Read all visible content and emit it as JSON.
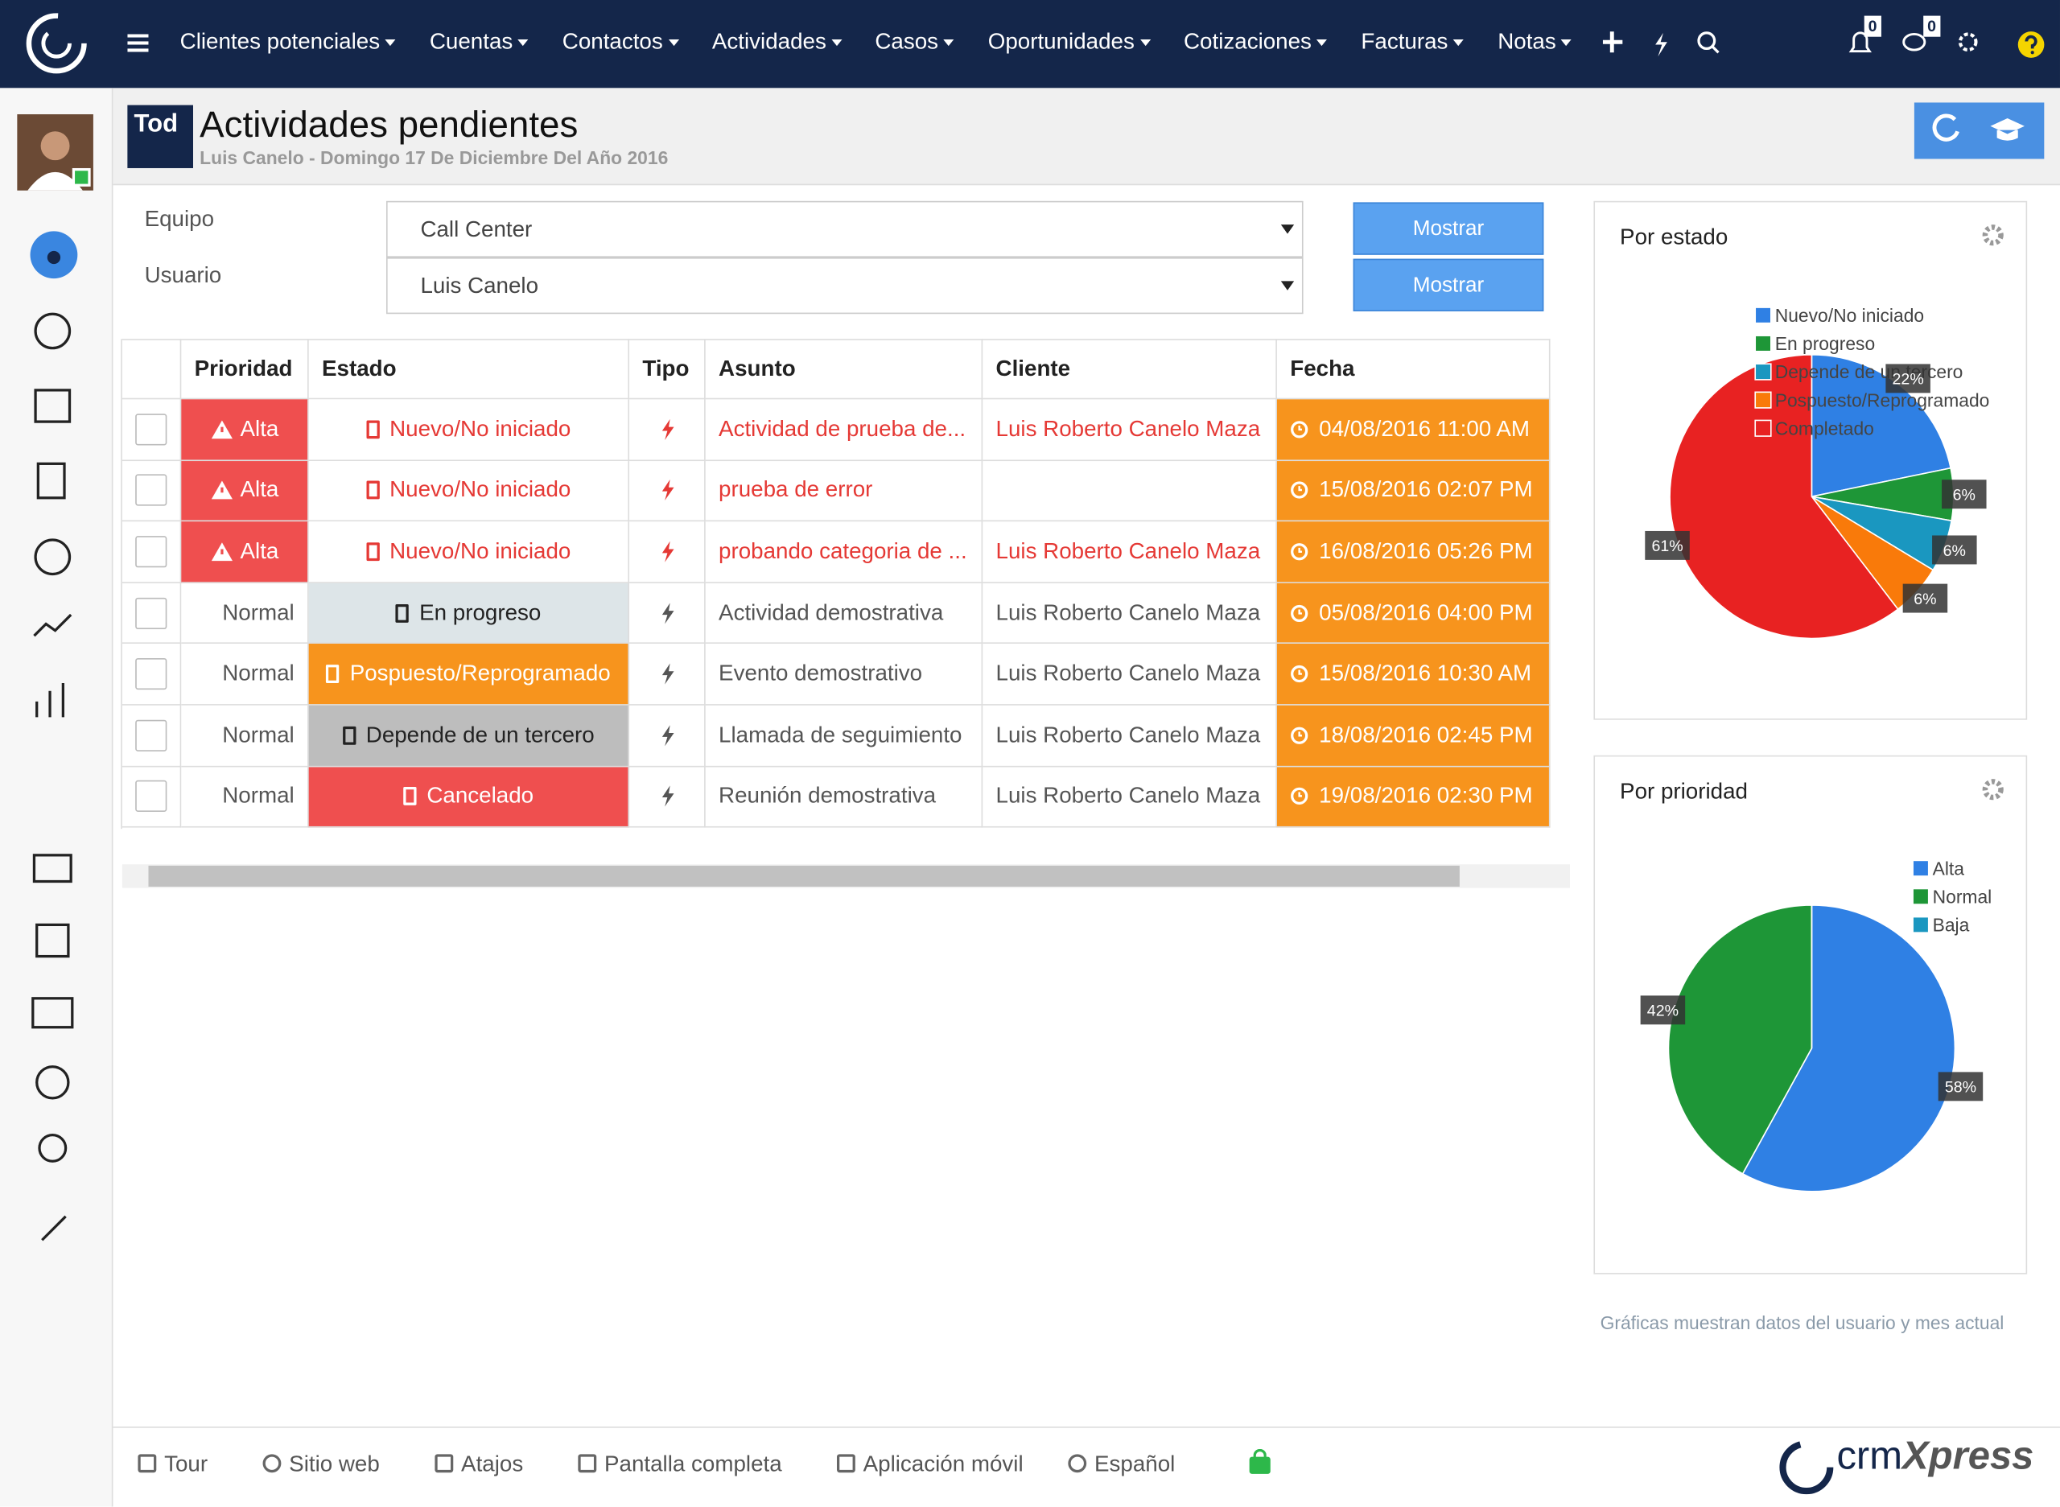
{
  "nav": {
    "items": [
      "Clientes potenciales",
      "Cuentas",
      "Contactos",
      "Actividades",
      "Casos",
      "Oportunidades",
      "Cotizaciones",
      "Facturas",
      "Notas"
    ],
    "notifications": 0,
    "messages": 0
  },
  "header": {
    "badge": "Tod",
    "title": "Actividades pendientes",
    "subtitle": "Luis Canelo - Domingo 17 De Diciembre Del Año 2016"
  },
  "filters": [
    {
      "label": "Equipo",
      "value": "Call Center",
      "button": "Mostrar"
    },
    {
      "label": "Usuario",
      "value": "Luis Canelo",
      "button": "Mostrar"
    }
  ],
  "table": {
    "headers": [
      "Prioridad",
      "Estado",
      "Tipo",
      "Asunto",
      "Cliente",
      "Fecha"
    ],
    "rows": [
      {
        "priority": "Alta",
        "status": "Nuevo/No iniciado",
        "subject": "Actividad de prueba de...",
        "client": "Luis Roberto Canelo Maza",
        "date": "04/08/2016 11:00 AM",
        "priority_bg": "#ef4f4f",
        "status_bg": null,
        "text_color": "#e53935"
      },
      {
        "priority": "Alta",
        "status": "Nuevo/No iniciado",
        "subject": "prueba de error",
        "client": null,
        "date": "15/08/2016 02:07 PM",
        "priority_bg": "#ef4f4f",
        "status_bg": null,
        "text_color": "#e53935"
      },
      {
        "priority": "Alta",
        "status": "Nuevo/No iniciado",
        "subject": "probando categoria de ...",
        "client": "Luis Roberto Canelo Maza",
        "date": "16/08/2016 05:26 PM",
        "priority_bg": "#ef4f4f",
        "status_bg": null,
        "text_color": "#e53935"
      },
      {
        "priority": "Normal",
        "status": "En progreso",
        "subject": "Actividad demostrativa",
        "client": "Luis Roberto Canelo Maza",
        "date": "05/08/2016 04:00 PM",
        "priority_bg": null,
        "status_bg": "#dde5e8",
        "text_color": "#555555"
      },
      {
        "priority": "Normal",
        "status": "Pospuesto/Reprogramado",
        "subject": "Evento demostrativo",
        "client": "Luis Roberto Canelo Maza",
        "date": "15/08/2016 10:30 AM",
        "priority_bg": null,
        "status_bg": "#f7941d",
        "text_color": "#555555"
      },
      {
        "priority": "Normal",
        "status": "Depende de un tercero",
        "subject": "Llamada de seguimiento",
        "client": "Luis Roberto Canelo Maza",
        "date": "18/08/2016 02:45 PM",
        "priority_bg": null,
        "status_bg": "#bdbdbd",
        "text_color": "#555555"
      },
      {
        "priority": "Normal",
        "status": "Cancelado",
        "subject": "Reunión demostrativa",
        "client": "Luis Roberto Canelo Maza",
        "date": "19/08/2016 02:30 PM",
        "priority_bg": null,
        "status_bg": "#ef4f4f",
        "text_color": "#555555"
      }
    ],
    "date_bg": "#f7941d"
  },
  "chart_data": [
    {
      "type": "pie",
      "title": "Por estado",
      "categories": [
        "Nuevo/No iniciado",
        "En progreso",
        "Depende de un tercero",
        "Pospuesto/Reprogramado",
        "Completado"
      ],
      "values": [
        22,
        6,
        6,
        6,
        61
      ],
      "value_labels": [
        "22%",
        "6%",
        "6%",
        "6%",
        "61%"
      ],
      "colors": [
        "#2f80e4",
        "#1e9637",
        "#1a97c0",
        "#f97a0a",
        "#e82222"
      ]
    },
    {
      "type": "pie",
      "title": "Por prioridad",
      "categories": [
        "Alta",
        "Normal",
        "Baja"
      ],
      "values": [
        58,
        42,
        0
      ],
      "value_labels": [
        "58%",
        "42%",
        null
      ],
      "colors": [
        "#2f80e4",
        "#1e9637",
        "#1a97c0"
      ]
    }
  ],
  "chart_note": "Gráficas muestran datos del usuario y mes actual",
  "footer": {
    "items": [
      "Tour",
      "Sitio web",
      "Atajos",
      "Pantalla completa",
      "Aplicación móvil",
      "Español"
    ],
    "logo_a": "crm",
    "logo_b": "Xpress"
  }
}
